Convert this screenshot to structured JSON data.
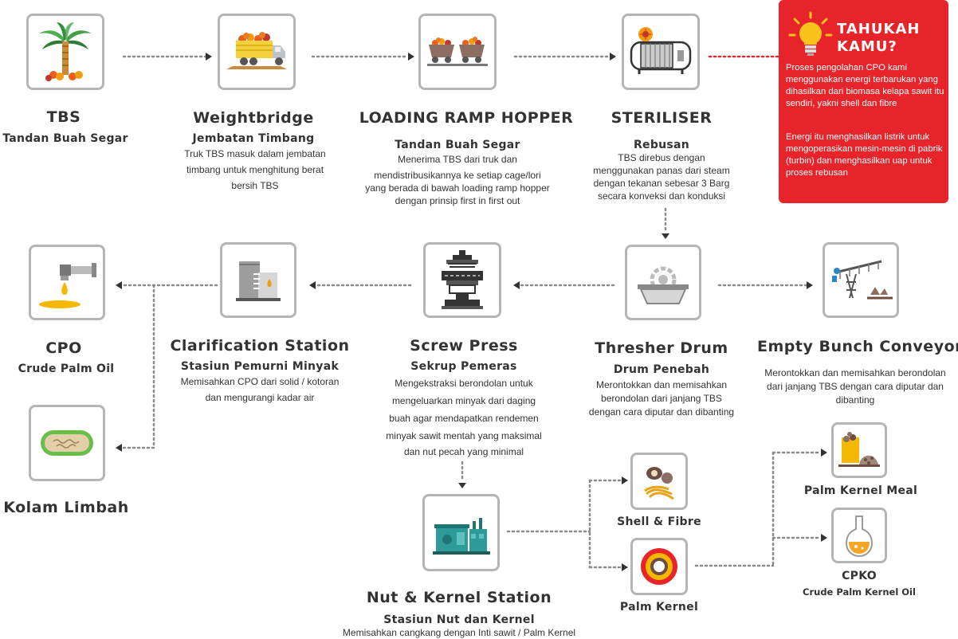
{
  "callout": {
    "title": "TAHUKAH KAMU?",
    "para1": "Proses pengolahan CPO kami menggunakan energi terbarukan yang dihasilkan dari biomasa kelapa sawit itu sendiri, yakni shell dan fibre",
    "para2": "Energi itu menghasilkan listrik untuk mengoperasikan mesin-mesin di pabrik (turbin) dan menghasilkan uap untuk proses rebusan"
  },
  "steps": {
    "tbs": {
      "title": "TBS",
      "subtitle": "Tandan Buah Segar"
    },
    "weightbridge": {
      "title": "Weightbridge",
      "subtitle": "Jembatan Timbang",
      "desc": [
        "Truk TBS masuk dalam jembatan",
        "timbang untuk menghitung berat",
        "bersih TBS"
      ]
    },
    "loading_ramp": {
      "title": "LOADING RAMP HOPPER",
      "subtitle": "Tandan Buah Segar",
      "desc": [
        "Menerima TBS dari truk dan",
        "mendistribusikannya ke setiap cage/lori",
        "yang berada di bawah loading ramp hopper",
        "dengan prinsip first in first out"
      ]
    },
    "steriliser": {
      "title": "STERILISER",
      "subtitle": "Rebusan",
      "desc": [
        "TBS direbus dengan",
        "menggunakan panas dari steam",
        "dengan tekanan sebesar 3 Barg",
        "secara konveksi dan konduksi"
      ]
    },
    "thresher": {
      "title": "Thresher Drum",
      "subtitle": "Drum Penebah",
      "desc": [
        "Merontokkan dan memisahkan",
        "berondolan dari janjang TBS",
        "dengan cara diputar dan dibanting"
      ]
    },
    "empty_bunch": {
      "title": "Empty Bunch Conveyor",
      "desc": [
        "Merontokkan dan memisahkan berondolan",
        "dari janjang TBS dengan cara diputar dan",
        "dibanting"
      ]
    },
    "screw_press": {
      "title": "Screw Press",
      "subtitle": "Sekrup Pemeras",
      "desc": [
        "Mengekstraksi berondolan untuk",
        "mengeluarkan minyak dari daging",
        "buah agar mendapatkan rendemen",
        "minyak sawit mentah yang maksimal",
        "dan nut pecah yang minimal"
      ]
    },
    "clarification": {
      "title": "Clarification Station",
      "subtitle": "Stasiun Pemurni Minyak",
      "desc": [
        "Memisahkan CPO dari solid / kotoran",
        "dan mengurangi kadar air"
      ]
    },
    "cpo": {
      "title": "CPO",
      "subtitle": "Crude Palm Oil"
    },
    "kolam": {
      "title": "Kolam Limbah"
    },
    "nut_kernel": {
      "title": "Nut & Kernel Station",
      "subtitle": "Stasiun Nut dan Kernel",
      "desc": [
        "Memisahkan cangkang dengan Inti sawit / Palm Kernel"
      ]
    },
    "shell_fibre": {
      "title": "Shell & Fibre"
    },
    "palm_kernel": {
      "title": "Palm Kernel"
    },
    "pkm": {
      "title": "Palm Kernel Meal"
    },
    "cpko": {
      "title": "CPKO",
      "subtitle": "Crude Palm Kernel Oil"
    }
  },
  "colors": {
    "accent_red": "#e8242b",
    "dotted_gray": "#8a8a8a",
    "box_border": "#b5b5b5",
    "teal": "#2e9b9a",
    "orange": "#f0a01e"
  },
  "icons": {
    "tbs": "palm-tree-icon",
    "weightbridge": "truck-icon",
    "loading_ramp": "lorry-carts-icon",
    "steriliser": "steriliser-tank-icon",
    "thresher": "thresher-drum-icon",
    "empty_bunch": "conveyor-icon",
    "screw_press": "screw-press-icon",
    "clarification": "clarification-tank-icon",
    "cpo": "oil-tap-icon",
    "kolam": "waste-pond-icon",
    "nut_kernel": "nut-kernel-machine-icon",
    "shell_fibre": "shell-fibre-icon",
    "palm_kernel": "palm-kernel-icon",
    "pkm": "kernel-meal-icon",
    "cpko": "flask-icon",
    "callout": "lightbulb-icon"
  }
}
